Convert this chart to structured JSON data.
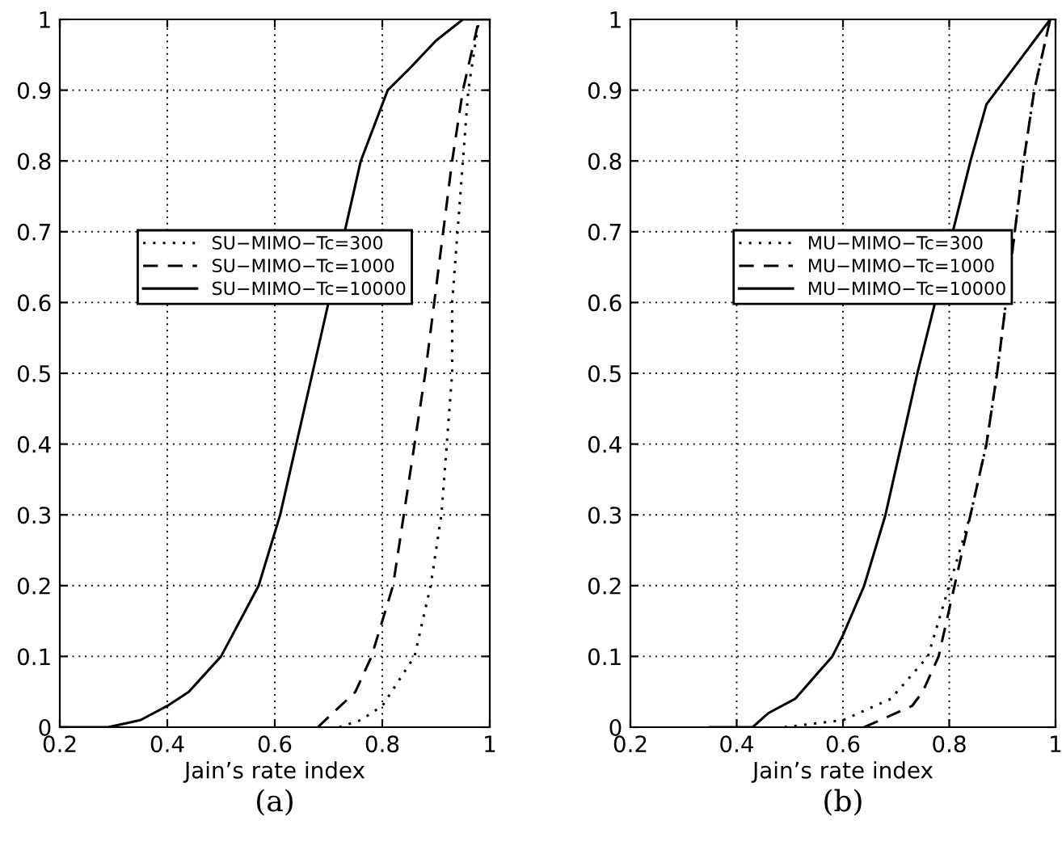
{
  "chart_data": [
    {
      "type": "line",
      "xlabel": "Jain’s rate index",
      "annotations": [
        "(a)"
      ],
      "xlim": [
        0.2,
        1
      ],
      "ylim": [
        0,
        1
      ],
      "xticks": [
        0.2,
        0.4,
        0.6,
        0.8,
        1
      ],
      "yticks": [
        0,
        0.1,
        0.2,
        0.3,
        0.4,
        0.5,
        0.6,
        0.7,
        0.8,
        0.9,
        1
      ],
      "grid": true,
      "legend": "center",
      "series": [
        {
          "name": "SU−MIMO−Tc=300",
          "color": "#000000",
          "line_style": "dotted",
          "x": [
            0.72,
            0.76,
            0.8,
            0.86,
            0.89,
            0.91,
            0.92,
            0.93,
            0.93,
            0.94,
            0.95,
            0.96,
            0.98
          ],
          "values": [
            0,
            0.01,
            0.03,
            0.1,
            0.2,
            0.3,
            0.4,
            0.5,
            0.6,
            0.7,
            0.8,
            0.9,
            1
          ]
        },
        {
          "name": "SU−MIMO−Tc=1000",
          "color": "#000000",
          "line_style": "dashed",
          "x": [
            0.68,
            0.75,
            0.78,
            0.82,
            0.84,
            0.86,
            0.88,
            0.93,
            0.95,
            0.98
          ],
          "values": [
            0,
            0.05,
            0.1,
            0.2,
            0.3,
            0.4,
            0.5,
            0.8,
            0.9,
            1
          ]
        },
        {
          "name": "SU−MIMO−Tc=10000",
          "color": "#000000",
          "line_style": "solid",
          "x": [
            0.2,
            0.29,
            0.35,
            0.4,
            0.44,
            0.5,
            0.57,
            0.61,
            0.64,
            0.67,
            0.76,
            0.81,
            0.85,
            0.9,
            0.95,
            1
          ],
          "values": [
            0,
            0,
            0.01,
            0.03,
            0.05,
            0.1,
            0.2,
            0.3,
            0.4,
            0.5,
            0.8,
            0.9,
            0.93,
            0.97,
            1,
            1
          ]
        }
      ]
    },
    {
      "type": "line",
      "xlabel": "Jain’s rate index",
      "annotations": [
        "(b)"
      ],
      "xlim": [
        0.2,
        1
      ],
      "ylim": [
        0,
        1
      ],
      "xticks": [
        0.2,
        0.4,
        0.6,
        0.8,
        1
      ],
      "yticks": [
        0,
        0.1,
        0.2,
        0.3,
        0.4,
        0.5,
        0.6,
        0.7,
        0.8,
        0.9,
        1
      ],
      "grid": true,
      "legend": "center",
      "series": [
        {
          "name": "MU−MIMO−Tc=300",
          "color": "#000000",
          "line_style": "dotted",
          "x": [
            0.49,
            0.6,
            0.69,
            0.76,
            0.8,
            0.84,
            0.87,
            0.89,
            0.94,
            0.96,
            0.99
          ],
          "values": [
            0,
            0.01,
            0.04,
            0.1,
            0.2,
            0.3,
            0.4,
            0.5,
            0.8,
            0.9,
            1
          ]
        },
        {
          "name": "MU−MIMO−Tc=1000",
          "color": "#000000",
          "line_style": "dashed",
          "x": [
            0.64,
            0.73,
            0.75,
            0.78,
            0.81,
            0.84,
            0.87,
            0.89,
            0.94,
            0.96,
            0.99
          ],
          "values": [
            0,
            0.03,
            0.05,
            0.1,
            0.2,
            0.3,
            0.4,
            0.5,
            0.8,
            0.9,
            1
          ]
        },
        {
          "name": "MU−MIMO−Tc=10000",
          "color": "#000000",
          "line_style": "solid",
          "x": [
            0.35,
            0.43,
            0.46,
            0.51,
            0.58,
            0.6,
            0.64,
            0.68,
            0.71,
            0.74,
            0.84,
            0.87,
            0.91,
            0.96,
            0.99
          ],
          "values": [
            0,
            0,
            0.02,
            0.04,
            0.1,
            0.13,
            0.2,
            0.3,
            0.4,
            0.5,
            0.8,
            0.88,
            0.92,
            0.97,
            1
          ]
        }
      ]
    }
  ]
}
